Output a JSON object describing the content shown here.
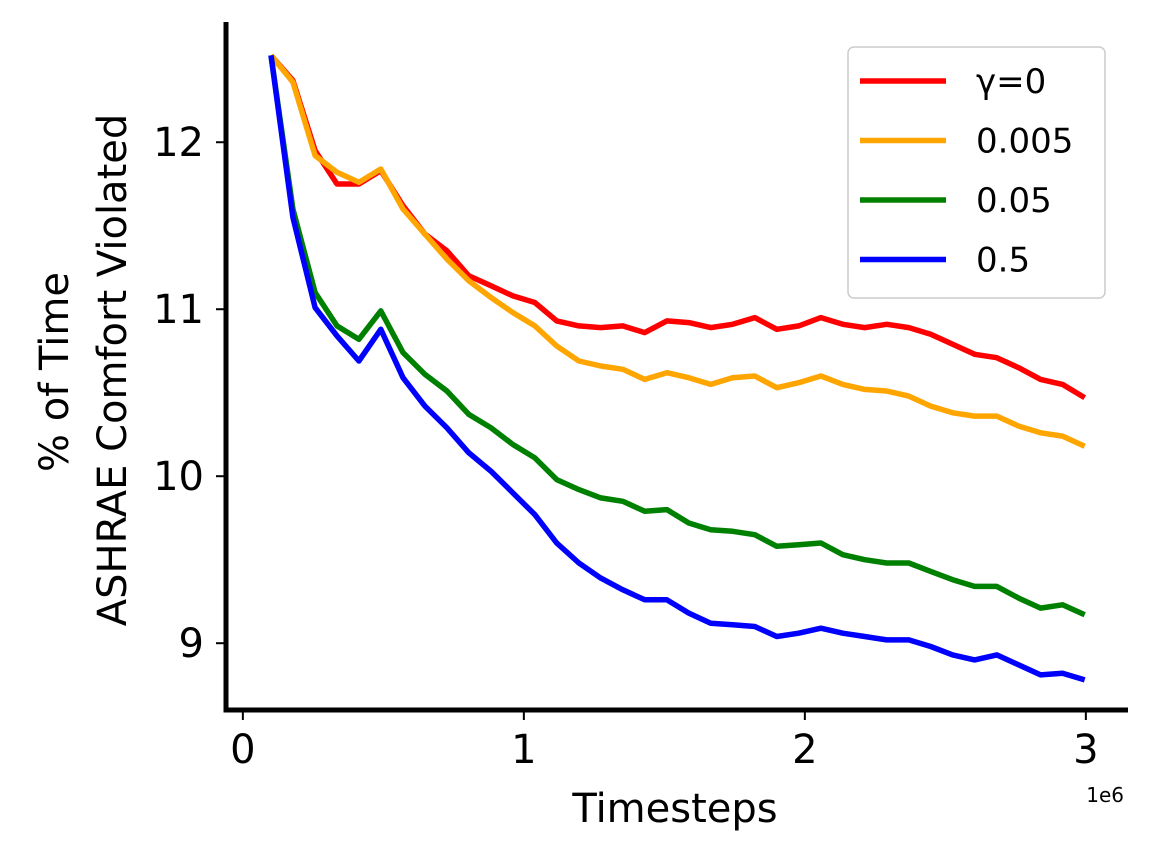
{
  "chart_data": {
    "type": "line",
    "title": "",
    "xlabel": "Timesteps",
    "ylabel_line1": "% of Time",
    "ylabel_line2": "ASHRAE Comfort Violated",
    "x_offset_label": "1e6",
    "xlim": [
      -0.06,
      3.15
    ],
    "ylim": [
      8.6,
      12.72
    ],
    "xticks": [
      0,
      1,
      2,
      3
    ],
    "xtick_labels": [
      "0",
      "1",
      "2",
      "3"
    ],
    "yticks": [
      9,
      10,
      11,
      12
    ],
    "ytick_labels": [
      "9",
      "10",
      "11",
      "12"
    ],
    "grid": false,
    "legend_position": "top-right",
    "x": [
      0.1,
      0.178,
      0.257,
      0.335,
      0.413,
      0.491,
      0.57,
      0.648,
      0.726,
      0.804,
      0.883,
      0.961,
      1.039,
      1.117,
      1.196,
      1.274,
      1.352,
      1.43,
      1.509,
      1.587,
      1.665,
      1.743,
      1.822,
      1.9,
      1.978,
      2.057,
      2.135,
      2.213,
      2.291,
      2.37,
      2.448,
      2.526,
      2.604,
      2.683,
      2.761,
      2.839,
      2.917,
      2.996
    ],
    "series": [
      {
        "name": "γ=0",
        "color": "#ff0000",
        "values": [
          12.52,
          12.37,
          11.95,
          11.75,
          11.75,
          11.83,
          11.62,
          11.45,
          11.35,
          11.2,
          11.14,
          11.08,
          11.04,
          10.93,
          10.9,
          10.89,
          10.9,
          10.86,
          10.93,
          10.92,
          10.89,
          10.91,
          10.95,
          10.88,
          10.9,
          10.95,
          10.91,
          10.89,
          10.91,
          10.89,
          10.85,
          10.79,
          10.73,
          10.71,
          10.65,
          10.58,
          10.55,
          10.47
        ]
      },
      {
        "name": "0.005",
        "color": "#ffa500",
        "values": [
          12.52,
          12.36,
          11.92,
          11.82,
          11.76,
          11.84,
          11.6,
          11.45,
          11.3,
          11.17,
          11.07,
          10.98,
          10.9,
          10.78,
          10.69,
          10.66,
          10.64,
          10.58,
          10.62,
          10.59,
          10.55,
          10.59,
          10.6,
          10.53,
          10.56,
          10.6,
          10.55,
          10.52,
          10.51,
          10.48,
          10.42,
          10.38,
          10.36,
          10.36,
          10.3,
          10.26,
          10.24,
          10.18
        ]
      },
      {
        "name": "0.05",
        "color": "#008000",
        "values": [
          12.52,
          11.6,
          11.1,
          10.9,
          10.82,
          10.99,
          10.74,
          10.61,
          10.51,
          10.37,
          10.29,
          10.19,
          10.11,
          9.98,
          9.92,
          9.87,
          9.85,
          9.79,
          9.8,
          9.72,
          9.68,
          9.67,
          9.65,
          9.58,
          9.59,
          9.6,
          9.53,
          9.5,
          9.48,
          9.48,
          9.43,
          9.38,
          9.34,
          9.34,
          9.27,
          9.21,
          9.23,
          9.17
        ]
      },
      {
        "name": "0.5",
        "color": "#0000ff",
        "values": [
          12.52,
          11.55,
          11.01,
          10.84,
          10.69,
          10.88,
          10.59,
          10.42,
          10.29,
          10.14,
          10.03,
          9.9,
          9.77,
          9.6,
          9.48,
          9.39,
          9.32,
          9.26,
          9.26,
          9.18,
          9.12,
          9.11,
          9.1,
          9.04,
          9.06,
          9.09,
          9.06,
          9.04,
          9.02,
          9.02,
          8.98,
          8.93,
          8.9,
          8.93,
          8.87,
          8.81,
          8.82,
          8.78
        ]
      }
    ]
  }
}
